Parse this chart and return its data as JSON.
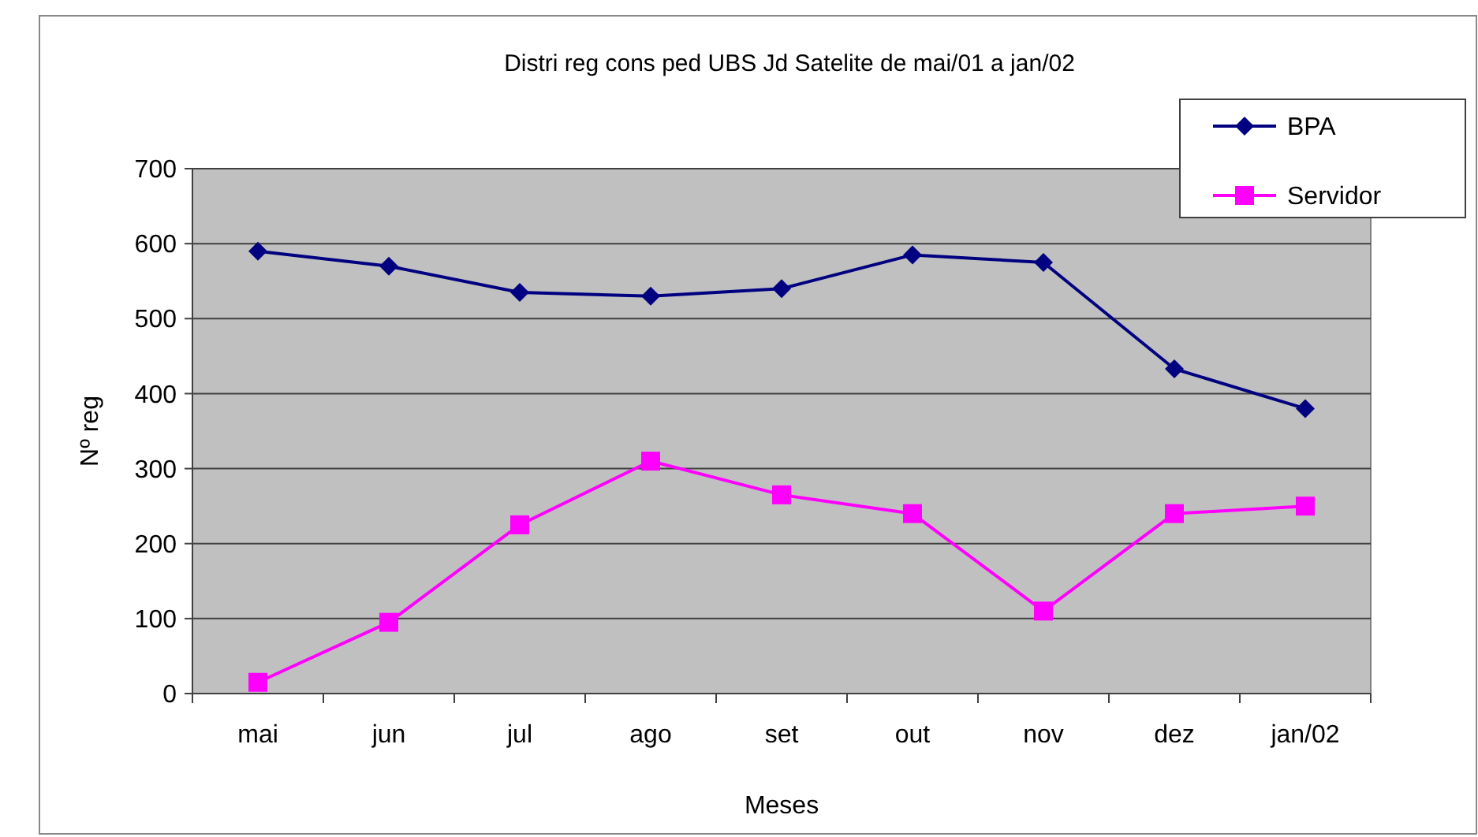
{
  "chart_data": {
    "type": "line",
    "title": "Distri reg cons ped UBS Jd Satelite de mai/01 a jan/02",
    "xlabel": "Meses",
    "ylabel": "Nº reg",
    "categories": [
      "mai",
      "jun",
      "jul",
      "ago",
      "set",
      "out",
      "nov",
      "dez",
      "jan/02"
    ],
    "series": [
      {
        "name": "BPA",
        "color": "#000080",
        "marker": "diamond",
        "values": [
          590,
          570,
          535,
          530,
          540,
          585,
          575,
          433,
          380
        ]
      },
      {
        "name": "Servidor",
        "color": "#ff00ff",
        "marker": "square",
        "values": [
          15,
          95,
          225,
          310,
          265,
          240,
          110,
          240,
          250
        ]
      }
    ],
    "ylim": [
      0,
      700
    ],
    "yticks": [
      0,
      100,
      200,
      300,
      400,
      500,
      600,
      700
    ],
    "grid": "y",
    "legend": "top right",
    "line_style": "solid"
  }
}
